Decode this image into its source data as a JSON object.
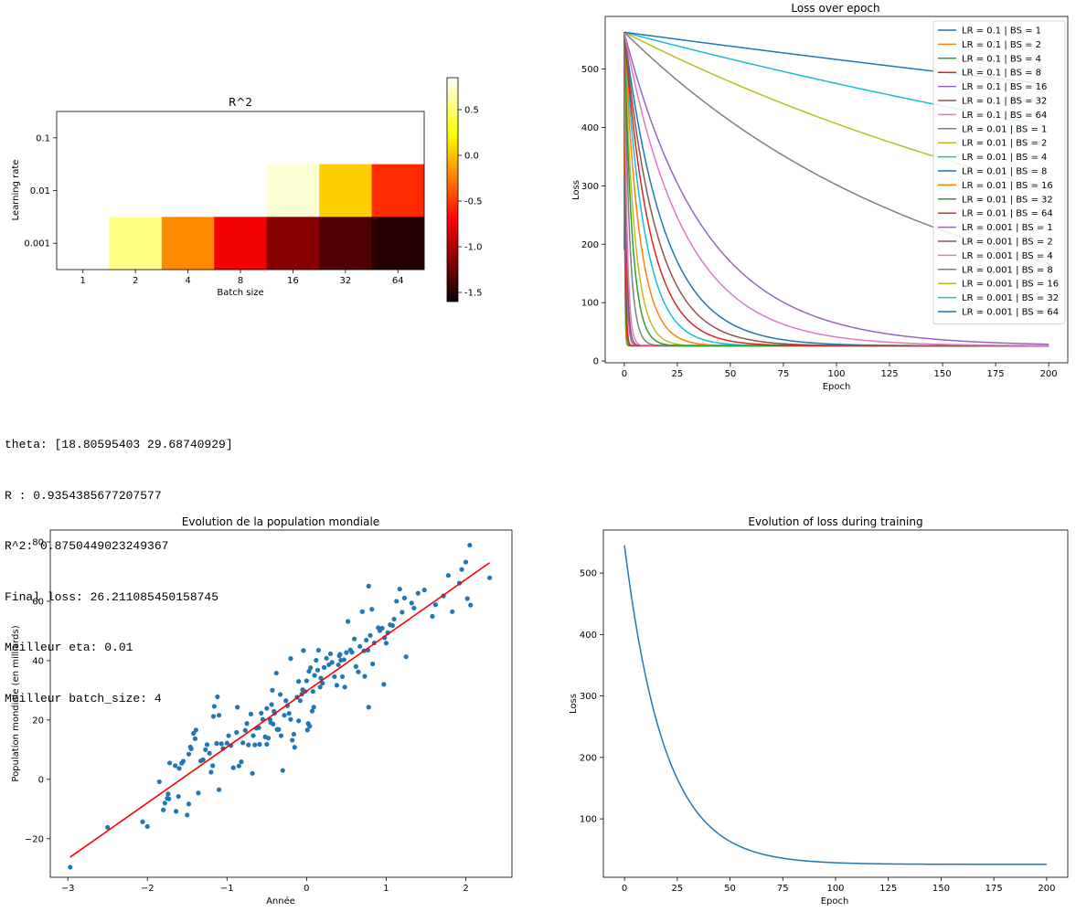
{
  "console": {
    "lines": [
      "theta: [18.80595403 29.68740929]",
      "R : 0.9354385677207577",
      "R^2: 0.8750449023249367",
      "Final loss: 26.211085450158745",
      "Meilleur eta: 0.01",
      "Meilleur batch_size: 4"
    ]
  },
  "chart_data": [
    {
      "type": "heatmap",
      "title": "R^2",
      "xlabel": "Batch size",
      "ylabel": "Learning rate",
      "x_categories": [
        "1",
        "2",
        "4",
        "8",
        "16",
        "32",
        "64"
      ],
      "y_categories": [
        "0.1",
        "0.01",
        "0.001"
      ],
      "values": [
        [
          null,
          null,
          null,
          null,
          null,
          null,
          null
        ],
        [
          null,
          null,
          null,
          null,
          0.75,
          0.05,
          -0.55
        ],
        [
          0.85,
          0.55,
          -0.2,
          -0.75,
          -1.15,
          -1.35,
          -1.5
        ]
      ],
      "colorbar": {
        "min": -1.6,
        "max": 0.85,
        "ticks": [
          "0.5",
          "0.0",
          "-0.5",
          "-1.0",
          "-1.5"
        ],
        "tick_values": [
          0.5,
          0.0,
          -0.5,
          -1.0,
          -1.5
        ]
      },
      "colormap": "hot"
    },
    {
      "type": "line",
      "title": "Loss over epoch",
      "xlabel": "Epoch",
      "ylabel": "Loss",
      "xlim": [
        -9,
        209
      ],
      "ylim": [
        -3,
        590
      ],
      "x_ticks": [
        "0",
        "25",
        "50",
        "75",
        "100",
        "125",
        "150",
        "175",
        "200"
      ],
      "y_ticks": [
        "0",
        "100",
        "200",
        "300",
        "400",
        "500"
      ],
      "legend_position": "top-right",
      "loss_start": 563,
      "loss_floor": 26,
      "series": [
        {
          "name": "LR = 0.1 | BS = 1",
          "color": "#1f77b4",
          "x_end": 2,
          "tau": 0.25,
          "start": 190
        },
        {
          "name": "LR = 0.1 | BS = 2",
          "color": "#ff7f0e",
          "x_end": 2,
          "tau": 0.25,
          "start": 310
        },
        {
          "name": "LR = 0.1 | BS = 4",
          "color": "#2ca02c",
          "x_end": 3,
          "tau": 0.35,
          "start": 400
        },
        {
          "name": "LR = 0.1 | BS = 8",
          "color": "#d62728",
          "x_end": 4,
          "tau": 0.5,
          "start": 470
        },
        {
          "name": "LR = 0.1 | BS = 16",
          "color": "#9467bd",
          "x_end": 5,
          "tau": 0.8,
          "start": 520
        },
        {
          "name": "LR = 0.1 | BS = 32",
          "color": "#8c564b",
          "x_end": 6,
          "tau": 1.0,
          "start": 545
        },
        {
          "name": "LR = 0.1 | BS = 64",
          "color": "#e377c2",
          "x_end": 8,
          "tau": 1.3,
          "start": 556
        },
        {
          "name": "LR = 0.01 | BS = 1",
          "color": "#7f7f7f",
          "x_end": 200,
          "tau": 2.4,
          "start": 563
        },
        {
          "name": "LR = 0.01 | BS = 2",
          "color": "#bcbd22",
          "x_end": 200,
          "tau": 4.8,
          "start": 563
        },
        {
          "name": "LR = 0.01 | BS = 4",
          "color": "#17becf",
          "x_end": 200,
          "tau": 9.5,
          "start": 563
        },
        {
          "name": "LR = 0.01 | BS = 8",
          "color": "#1f77b4",
          "x_end": 200,
          "tau": 19,
          "start": 563
        },
        {
          "name": "LR = 0.01 | BS = 16",
          "color": "#ff7f0e",
          "x_end": 200,
          "tau": 7,
          "start": 563
        },
        {
          "name": "LR = 0.01 | BS = 32",
          "color": "#2ca02c",
          "x_end": 200,
          "tau": 3.6,
          "start": 563
        },
        {
          "name": "LR = 0.01 | BS = 64",
          "color": "#d62728",
          "x_end": 200,
          "tau": 12,
          "start": 563
        },
        {
          "name": "LR = 0.001 | BS = 1",
          "color": "#9467bd",
          "x_end": 200,
          "tau": 38,
          "start": 563
        },
        {
          "name": "LR = 0.001 | BS = 2",
          "color": "#8c564b",
          "x_end": 200,
          "tau": 15,
          "start": 563
        },
        {
          "name": "LR = 0.001 | BS = 4",
          "color": "#e377c2",
          "x_end": 200,
          "tau": 28,
          "start": 563
        },
        {
          "name": "LR = 0.001 | BS = 8",
          "color": "#7f7f7f",
          "x_end": 200,
          "tau": 150,
          "start": 563
        },
        {
          "name": "LR = 0.001 | BS = 16",
          "color": "#bcbd22",
          "x_end": 200,
          "tau": 290,
          "start": 563
        },
        {
          "name": "LR = 0.001 | BS = 32",
          "color": "#17becf",
          "x_end": 200,
          "tau": 560,
          "start": 563
        },
        {
          "name": "LR = 0.001 | BS = 64",
          "color": "#1f77b4",
          "x_end": 200,
          "tau": 1100,
          "start": 563
        }
      ]
    },
    {
      "type": "scatter",
      "title": "Evolution de la population mondiale",
      "xlabel": "Année",
      "ylabel": "Population mondiale (en milliards)",
      "xlim": [
        -3.22,
        2.58
      ],
      "ylim": [
        -33,
        84
      ],
      "x_ticks": [
        "−3",
        "−2",
        "−1",
        "0",
        "1",
        "2"
      ],
      "y_ticks": [
        "−20",
        "0",
        "20",
        "40",
        "60",
        "80"
      ],
      "point_color": "#1f77b4",
      "fit_line": {
        "color": "#ff0000",
        "x": [
          -2.97,
          2.3
        ],
        "y": [
          -26.2,
          73.0
        ]
      },
      "points": [
        [
          -2.97,
          -29.6
        ],
        [
          -2.5,
          -16.2
        ],
        [
          -2.06,
          -14.3
        ],
        [
          -2.0,
          -15.9
        ],
        [
          -1.85,
          -0.8
        ],
        [
          -1.72,
          5.5
        ],
        [
          -1.74,
          -4.9
        ],
        [
          -1.75,
          -6.4
        ],
        [
          -1.78,
          -8.0
        ],
        [
          -1.73,
          -6.6
        ],
        [
          -1.8,
          -10.3
        ],
        [
          -1.65,
          4.6
        ],
        [
          -1.6,
          3.7
        ],
        [
          -1.57,
          5.4
        ],
        [
          -1.55,
          6.1
        ],
        [
          -1.61,
          -5.8
        ],
        [
          -1.64,
          -10.8
        ],
        [
          -1.5,
          -12.0
        ],
        [
          -1.48,
          -8.3
        ],
        [
          -1.48,
          8.5
        ],
        [
          -1.46,
          10.9
        ],
        [
          -1.45,
          10.3
        ],
        [
          -1.42,
          15.5
        ],
        [
          -1.4,
          13.7
        ],
        [
          -1.39,
          16.6
        ],
        [
          -1.36,
          -4.6
        ],
        [
          -1.33,
          6.2
        ],
        [
          -1.3,
          6.6
        ],
        [
          -1.27,
          10.0
        ],
        [
          -1.25,
          11.7
        ],
        [
          -1.22,
          8.8
        ],
        [
          -1.2,
          2.4
        ],
        [
          -1.18,
          4.6
        ],
        [
          -1.17,
          21.2
        ],
        [
          -1.16,
          24.6
        ],
        [
          -1.13,
          12.1
        ],
        [
          -1.12,
          27.8
        ],
        [
          -1.1,
          21.6
        ],
        [
          -1.1,
          -3.5
        ],
        [
          -1.07,
          12.0
        ],
        [
          -1.05,
          10.4
        ],
        [
          -1.0,
          12.2
        ],
        [
          -0.98,
          14.7
        ],
        [
          -0.95,
          11.4
        ],
        [
          -0.92,
          3.9
        ],
        [
          -0.88,
          15.8
        ],
        [
          -0.87,
          24.3
        ],
        [
          -0.85,
          4.5
        ],
        [
          -0.82,
          5.9
        ],
        [
          -0.8,
          12.3
        ],
        [
          -0.77,
          16.5
        ],
        [
          -0.75,
          18.8
        ],
        [
          -0.73,
          11.6
        ],
        [
          -0.7,
          22.0
        ],
        [
          -0.68,
          2.0
        ],
        [
          -0.67,
          14.7
        ],
        [
          -0.65,
          11.6
        ],
        [
          -0.63,
          17.2
        ],
        [
          -0.6,
          17.4
        ],
        [
          -0.59,
          11.8
        ],
        [
          -0.57,
          22.3
        ],
        [
          -0.55,
          20.2
        ],
        [
          -0.52,
          14.3
        ],
        [
          -0.5,
          11.8
        ],
        [
          -0.5,
          23.9
        ],
        [
          -0.48,
          13.9
        ],
        [
          -0.46,
          20.2
        ],
        [
          -0.45,
          19.1
        ],
        [
          -0.44,
          25.2
        ],
        [
          -0.43,
          30.0
        ],
        [
          -0.42,
          18.6
        ],
        [
          -0.41,
          22.9
        ],
        [
          -0.4,
          22.3
        ],
        [
          -0.38,
          35.8
        ],
        [
          -0.37,
          16.8
        ],
        [
          -0.35,
          16.8
        ],
        [
          -0.33,
          28.6
        ],
        [
          -0.32,
          14.7
        ],
        [
          -0.3,
          3.0
        ],
        [
          -0.28,
          21.6
        ],
        [
          -0.26,
          26.5
        ],
        [
          -0.24,
          24.8
        ],
        [
          -0.22,
          22.2
        ],
        [
          -0.2,
          20.2
        ],
        [
          -0.2,
          40.7
        ],
        [
          -0.18,
          13.2
        ],
        [
          -0.16,
          15.2
        ],
        [
          -0.15,
          10.8
        ],
        [
          -0.12,
          27.7
        ],
        [
          -0.1,
          19.7
        ],
        [
          -0.1,
          33.0
        ],
        [
          -0.08,
          26.5
        ],
        [
          -0.06,
          28.7
        ],
        [
          -0.05,
          30.2
        ],
        [
          -0.04,
          43.4
        ],
        [
          -0.02,
          29.6
        ],
        [
          0.0,
          33.2
        ],
        [
          0.01,
          16.6
        ],
        [
          0.02,
          18.8
        ],
        [
          0.03,
          36.4
        ],
        [
          0.04,
          17.9
        ],
        [
          0.05,
          37.6
        ],
        [
          0.07,
          23.0
        ],
        [
          0.08,
          29.6
        ],
        [
          0.09,
          24.3
        ],
        [
          0.1,
          35.0
        ],
        [
          0.12,
          40.1
        ],
        [
          0.14,
          36.8
        ],
        [
          0.15,
          43.5
        ],
        [
          0.17,
          31.1
        ],
        [
          0.18,
          34.1
        ],
        [
          0.2,
          32.4
        ],
        [
          0.22,
          37.7
        ],
        [
          0.25,
          40.8
        ],
        [
          0.28,
          38.6
        ],
        [
          0.3,
          42.3
        ],
        [
          0.32,
          39.4
        ],
        [
          0.35,
          34.6
        ],
        [
          0.38,
          31.7
        ],
        [
          0.4,
          38.6
        ],
        [
          0.41,
          41.6
        ],
        [
          0.42,
          42.1
        ],
        [
          0.43,
          40.1
        ],
        [
          0.45,
          34.6
        ],
        [
          0.47,
          40.3
        ],
        [
          0.48,
          31.1
        ],
        [
          0.5,
          42.7
        ],
        [
          0.52,
          53.2
        ],
        [
          0.55,
          43.6
        ],
        [
          0.57,
          42.8
        ],
        [
          0.6,
          47.3
        ],
        [
          0.62,
          38.0
        ],
        [
          0.65,
          36.2
        ],
        [
          0.67,
          44.8
        ],
        [
          0.7,
          56.5
        ],
        [
          0.72,
          43.3
        ],
        [
          0.73,
          34.7
        ],
        [
          0.75,
          46.9
        ],
        [
          0.77,
          43.5
        ],
        [
          0.78,
          65.1
        ],
        [
          0.78,
          24.3
        ],
        [
          0.8,
          48.5
        ],
        [
          0.82,
          57.3
        ],
        [
          0.83,
          38.9
        ],
        [
          0.85,
          46.0
        ],
        [
          0.9,
          51.1
        ],
        [
          0.92,
          50.1
        ],
        [
          0.95,
          50.9
        ],
        [
          0.97,
          32.0
        ],
        [
          0.98,
          47.7
        ],
        [
          1.0,
          45.9
        ],
        [
          1.02,
          49.4
        ],
        [
          1.05,
          52.1
        ],
        [
          1.08,
          51.8
        ],
        [
          1.1,
          54.0
        ],
        [
          1.13,
          60.0
        ],
        [
          1.17,
          64.1
        ],
        [
          1.2,
          56.3
        ],
        [
          1.23,
          61.1
        ],
        [
          1.25,
          41.3
        ],
        [
          1.32,
          59.4
        ],
        [
          1.35,
          57.7
        ],
        [
          1.4,
          62.7
        ],
        [
          1.48,
          63.8
        ],
        [
          1.58,
          54.9
        ],
        [
          1.62,
          58.8
        ],
        [
          1.72,
          61.8
        ],
        [
          1.78,
          68.7
        ],
        [
          1.83,
          56.5
        ],
        [
          1.92,
          66.1
        ],
        [
          1.95,
          70.7
        ],
        [
          2.0,
          73.2
        ],
        [
          2.02,
          60.9
        ],
        [
          2.05,
          78.9
        ],
        [
          2.06,
          58.7
        ],
        [
          2.3,
          67.9
        ]
      ]
    },
    {
      "type": "line",
      "title": "Evolution of loss during training",
      "xlabel": "Epoch",
      "ylabel": "Loss",
      "xlim": [
        -10,
        210
      ],
      "ylim": [
        5,
        570
      ],
      "x_ticks": [
        "0",
        "25",
        "50",
        "75",
        "100",
        "125",
        "150",
        "175",
        "200"
      ],
      "y_ticks": [
        "100",
        "200",
        "300",
        "400",
        "500"
      ],
      "series": [
        {
          "color": "#1f77b4",
          "start": 545,
          "floor": 26,
          "tau": 19,
          "x_end": 200
        }
      ]
    }
  ]
}
